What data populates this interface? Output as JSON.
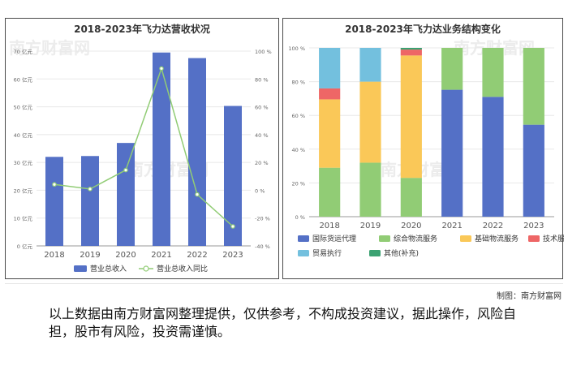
{
  "colors": {
    "bar_blue": "#5470c6",
    "line_green": "#91cc75",
    "freight": "#5470c6",
    "logistics": "#91cc75",
    "basic": "#fac858",
    "tech": "#ee6666",
    "trade": "#73c0de",
    "other": "#3ba272"
  },
  "watermark": "南方财富网",
  "credit": "制图：南方财富网",
  "disclaimer": "以上数据由南方财富网整理提供，仅供参考，不构成投资建议，据此操作，风险自担，股市有风险，投资需谨慎。",
  "chart_data": [
    {
      "type": "bar",
      "title": "2018-2023年飞力达营收状况",
      "categories": [
        "2018",
        "2019",
        "2020",
        "2021",
        "2022",
        "2023"
      ],
      "left_axis": {
        "ylim": [
          0,
          70
        ],
        "ticks": [
          "0 亿元",
          "10 亿元",
          "20 亿元",
          "30 亿元",
          "40 亿元",
          "50 亿元",
          "60 亿元",
          "70 亿元"
        ]
      },
      "right_axis": {
        "ylim": [
          -40,
          100
        ],
        "ticks": [
          "-40 %",
          "-20 %",
          "0 %",
          "20 %",
          "40 %",
          "60 %",
          "80 %",
          "100 %"
        ]
      },
      "series": [
        {
          "name": "营业总收入",
          "type": "bar",
          "axis": "left",
          "values": [
            32.0,
            32.3,
            37.0,
            69.5,
            67.5,
            50.3
          ]
        },
        {
          "name": "营业总收入同比",
          "type": "line",
          "axis": "right",
          "values": [
            4.2,
            0.9,
            14.5,
            87.5,
            -3.0,
            -26.0
          ]
        }
      ],
      "legend_placement": "bottom",
      "grid": true
    },
    {
      "type": "bar",
      "stacked": true,
      "title": "2018-2023年飞力达业务结构变化",
      "categories": [
        "2018",
        "2019",
        "2020",
        "2021",
        "2022",
        "2023"
      ],
      "ylim": [
        0,
        100
      ],
      "ticks": [
        "0 %",
        "20 %",
        "40 %",
        "60 %",
        "80 %",
        "100 %"
      ],
      "series": [
        {
          "name": "国际货运代理",
          "values": [
            0,
            0,
            0,
            75.2,
            71.0,
            54.5
          ]
        },
        {
          "name": "综合物流服务",
          "values": [
            29.0,
            32.0,
            23.0,
            24.8,
            29.0,
            45.5
          ]
        },
        {
          "name": "基础物流服务",
          "values": [
            40.5,
            48.0,
            72.5,
            0,
            0,
            0
          ]
        },
        {
          "name": "技术服务",
          "values": [
            6.5,
            0,
            3.5,
            0,
            0,
            0
          ]
        },
        {
          "name": "贸易执行",
          "values": [
            24.0,
            20.0,
            0,
            0,
            0,
            0
          ]
        },
        {
          "name": "其他(补充)",
          "values": [
            0,
            0,
            1.0,
            0,
            0,
            0
          ]
        }
      ],
      "legend_placement": "bottom",
      "grid": true
    }
  ]
}
